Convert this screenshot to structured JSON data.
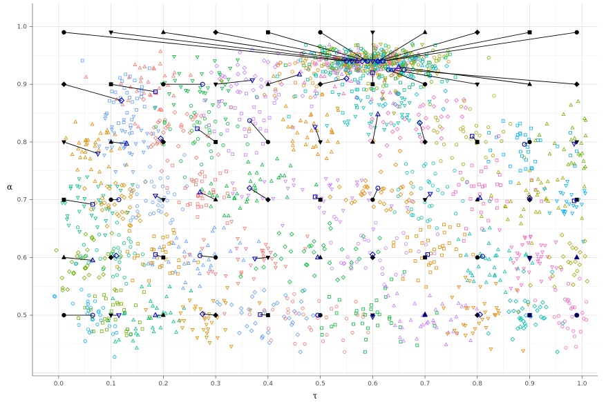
{
  "chart_data": {
    "type": "scatter",
    "title": "",
    "xlabel": "τ",
    "ylabel": "α",
    "xlim": [
      -0.05,
      1.03
    ],
    "ylim": [
      0.395,
      1.04
    ],
    "xticks": [
      "0.0",
      "0.1",
      "0.2",
      "0.3",
      "0.4",
      "0.5",
      "0.6",
      "0.7",
      "0.8",
      "0.9",
      "1.0"
    ],
    "yticks": [
      "0.5",
      "0.6",
      "0.7",
      "0.8",
      "0.9",
      "1.0"
    ],
    "grid": true,
    "legend": "none",
    "palette": [
      "#F8766D",
      "#00BA38",
      "#C77CFF",
      "#E58700",
      "#00C0AF",
      "#FF61C3",
      "#A3A500",
      "#00B0F6",
      "#6BB100",
      "#00BF7D",
      "#DE8C00",
      "#619CFF"
    ],
    "marker_shapes": [
      "circle",
      "square",
      "triangle-up",
      "triangle-down",
      "diamond"
    ],
    "true_color": "#000000",
    "estimate_color": "#0000CD",
    "pairs": [
      {
        "tau": 0.01,
        "alpha": 0.99,
        "shape": "circle",
        "est_tau": 0.55,
        "est_alpha": 0.94
      },
      {
        "tau": 0.1,
        "alpha": 0.99,
        "shape": "triangle-down",
        "est_tau": 0.56,
        "est_alpha": 0.94
      },
      {
        "tau": 0.2,
        "alpha": 0.99,
        "shape": "triangle-up",
        "est_tau": 0.57,
        "est_alpha": 0.94
      },
      {
        "tau": 0.3,
        "alpha": 0.99,
        "shape": "diamond",
        "est_tau": 0.58,
        "est_alpha": 0.94
      },
      {
        "tau": 0.4,
        "alpha": 0.99,
        "shape": "square",
        "est_tau": 0.59,
        "est_alpha": 0.94
      },
      {
        "tau": 0.5,
        "alpha": 0.99,
        "shape": "circle",
        "est_tau": 0.59,
        "est_alpha": 0.94
      },
      {
        "tau": 0.6,
        "alpha": 0.99,
        "shape": "triangle-down",
        "est_tau": 0.6,
        "est_alpha": 0.94
      },
      {
        "tau": 0.7,
        "alpha": 0.99,
        "shape": "triangle-up",
        "est_tau": 0.61,
        "est_alpha": 0.94
      },
      {
        "tau": 0.8,
        "alpha": 0.99,
        "shape": "diamond",
        "est_tau": 0.61,
        "est_alpha": 0.94
      },
      {
        "tau": 0.9,
        "alpha": 0.99,
        "shape": "square",
        "est_tau": 0.62,
        "est_alpha": 0.94
      },
      {
        "tau": 0.99,
        "alpha": 0.99,
        "shape": "circle",
        "est_tau": 0.62,
        "est_alpha": 0.94
      },
      {
        "tau": 0.01,
        "alpha": 0.9,
        "shape": "diamond",
        "est_tau": 0.12,
        "est_alpha": 0.872
      },
      {
        "tau": 0.1,
        "alpha": 0.9,
        "shape": "square",
        "est_tau": 0.185,
        "est_alpha": 0.887
      },
      {
        "tau": 0.2,
        "alpha": 0.9,
        "shape": "circle",
        "est_tau": 0.275,
        "est_alpha": 0.9
      },
      {
        "tau": 0.3,
        "alpha": 0.9,
        "shape": "triangle-down",
        "est_tau": 0.37,
        "est_alpha": 0.907
      },
      {
        "tau": 0.4,
        "alpha": 0.9,
        "shape": "triangle-up",
        "est_tau": 0.46,
        "est_alpha": 0.917
      },
      {
        "tau": 0.5,
        "alpha": 0.9,
        "shape": "diamond",
        "est_tau": 0.55,
        "est_alpha": 0.91
      },
      {
        "tau": 0.6,
        "alpha": 0.9,
        "shape": "square",
        "est_tau": 0.6,
        "est_alpha": 0.92
      },
      {
        "tau": 0.7,
        "alpha": 0.9,
        "shape": "circle",
        "est_tau": 0.63,
        "est_alpha": 0.925
      },
      {
        "tau": 0.8,
        "alpha": 0.9,
        "shape": "triangle-down",
        "est_tau": 0.64,
        "est_alpha": 0.925
      },
      {
        "tau": 0.9,
        "alpha": 0.9,
        "shape": "triangle-up",
        "est_tau": 0.65,
        "est_alpha": 0.93
      },
      {
        "tau": 0.99,
        "alpha": 0.9,
        "shape": "diamond",
        "est_tau": 0.66,
        "est_alpha": 0.925
      },
      {
        "tau": 0.01,
        "alpha": 0.8,
        "shape": "triangle-down",
        "est_tau": 0.075,
        "est_alpha": 0.78
      },
      {
        "tau": 0.1,
        "alpha": 0.8,
        "shape": "triangle-up",
        "est_tau": 0.13,
        "est_alpha": 0.797
      },
      {
        "tau": 0.2,
        "alpha": 0.8,
        "shape": "diamond",
        "est_tau": 0.195,
        "est_alpha": 0.806
      },
      {
        "tau": 0.3,
        "alpha": 0.8,
        "shape": "square",
        "est_tau": 0.265,
        "est_alpha": 0.823
      },
      {
        "tau": 0.4,
        "alpha": 0.8,
        "shape": "circle",
        "est_tau": 0.365,
        "est_alpha": 0.837
      },
      {
        "tau": 0.5,
        "alpha": 0.8,
        "shape": "triangle-down",
        "est_tau": 0.49,
        "est_alpha": 0.826
      },
      {
        "tau": 0.6,
        "alpha": 0.8,
        "shape": "triangle-up",
        "est_tau": 0.61,
        "est_alpha": 0.848
      },
      {
        "tau": 0.7,
        "alpha": 0.8,
        "shape": "diamond",
        "est_tau": 0.69,
        "est_alpha": 0.833
      },
      {
        "tau": 0.8,
        "alpha": 0.8,
        "shape": "square",
        "est_tau": 0.79,
        "est_alpha": 0.81
      },
      {
        "tau": 0.9,
        "alpha": 0.8,
        "shape": "circle",
        "est_tau": 0.89,
        "est_alpha": 0.796
      },
      {
        "tau": 0.99,
        "alpha": 0.8,
        "shape": "triangle-down",
        "est_tau": 0.985,
        "est_alpha": 0.797
      },
      {
        "tau": 0.01,
        "alpha": 0.7,
        "shape": "square",
        "est_tau": 0.065,
        "est_alpha": 0.692
      },
      {
        "tau": 0.1,
        "alpha": 0.7,
        "shape": "circle",
        "est_tau": 0.115,
        "est_alpha": 0.7
      },
      {
        "tau": 0.2,
        "alpha": 0.7,
        "shape": "triangle-down",
        "est_tau": 0.185,
        "est_alpha": 0.707
      },
      {
        "tau": 0.3,
        "alpha": 0.7,
        "shape": "triangle-up",
        "est_tau": 0.27,
        "est_alpha": 0.713
      },
      {
        "tau": 0.4,
        "alpha": 0.7,
        "shape": "diamond",
        "est_tau": 0.365,
        "est_alpha": 0.72
      },
      {
        "tau": 0.5,
        "alpha": 0.7,
        "shape": "square",
        "est_tau": 0.49,
        "est_alpha": 0.705
      },
      {
        "tau": 0.6,
        "alpha": 0.7,
        "shape": "circle",
        "est_tau": 0.61,
        "est_alpha": 0.72
      },
      {
        "tau": 0.7,
        "alpha": 0.7,
        "shape": "triangle-down",
        "est_tau": 0.71,
        "est_alpha": 0.71
      },
      {
        "tau": 0.8,
        "alpha": 0.7,
        "shape": "triangle-up",
        "est_tau": 0.805,
        "est_alpha": 0.703
      },
      {
        "tau": 0.9,
        "alpha": 0.7,
        "shape": "diamond",
        "est_tau": 0.9,
        "est_alpha": 0.703
      },
      {
        "tau": 0.99,
        "alpha": 0.7,
        "shape": "square",
        "est_tau": 0.985,
        "est_alpha": 0.698
      },
      {
        "tau": 0.01,
        "alpha": 0.6,
        "shape": "triangle-up",
        "est_tau": 0.065,
        "est_alpha": 0.595
      },
      {
        "tau": 0.1,
        "alpha": 0.6,
        "shape": "diamond",
        "est_tau": 0.11,
        "est_alpha": 0.603
      },
      {
        "tau": 0.2,
        "alpha": 0.6,
        "shape": "square",
        "est_tau": 0.185,
        "est_alpha": 0.605
      },
      {
        "tau": 0.3,
        "alpha": 0.6,
        "shape": "circle",
        "est_tau": 0.27,
        "est_alpha": 0.603
      },
      {
        "tau": 0.4,
        "alpha": 0.6,
        "shape": "triangle-down",
        "est_tau": 0.375,
        "est_alpha": 0.598
      },
      {
        "tau": 0.5,
        "alpha": 0.6,
        "shape": "triangle-up",
        "est_tau": 0.495,
        "est_alpha": 0.6
      },
      {
        "tau": 0.6,
        "alpha": 0.6,
        "shape": "diamond",
        "est_tau": 0.6,
        "est_alpha": 0.605
      },
      {
        "tau": 0.7,
        "alpha": 0.6,
        "shape": "square",
        "est_tau": 0.705,
        "est_alpha": 0.605
      },
      {
        "tau": 0.8,
        "alpha": 0.6,
        "shape": "circle",
        "est_tau": 0.81,
        "est_alpha": 0.602
      },
      {
        "tau": 0.9,
        "alpha": 0.6,
        "shape": "triangle-down",
        "est_tau": 0.9,
        "est_alpha": 0.598
      },
      {
        "tau": 0.99,
        "alpha": 0.6,
        "shape": "triangle-up",
        "est_tau": 0.99,
        "est_alpha": 0.6
      },
      {
        "tau": 0.01,
        "alpha": 0.5,
        "shape": "circle",
        "est_tau": 0.065,
        "est_alpha": 0.5
      },
      {
        "tau": 0.1,
        "alpha": 0.5,
        "shape": "triangle-down",
        "est_tau": 0.115,
        "est_alpha": 0.5
      },
      {
        "tau": 0.2,
        "alpha": 0.5,
        "shape": "triangle-up",
        "est_tau": 0.185,
        "est_alpha": 0.5
      },
      {
        "tau": 0.3,
        "alpha": 0.5,
        "shape": "diamond",
        "est_tau": 0.275,
        "est_alpha": 0.502
      },
      {
        "tau": 0.4,
        "alpha": 0.5,
        "shape": "square",
        "est_tau": 0.385,
        "est_alpha": 0.501
      },
      {
        "tau": 0.5,
        "alpha": 0.5,
        "shape": "circle",
        "est_tau": 0.495,
        "est_alpha": 0.5
      },
      {
        "tau": 0.6,
        "alpha": 0.5,
        "shape": "triangle-down",
        "est_tau": 0.6,
        "est_alpha": 0.497
      },
      {
        "tau": 0.7,
        "alpha": 0.5,
        "shape": "triangle-up",
        "est_tau": 0.7,
        "est_alpha": 0.501
      },
      {
        "tau": 0.8,
        "alpha": 0.5,
        "shape": "diamond",
        "est_tau": 0.805,
        "est_alpha": 0.501
      },
      {
        "tau": 0.9,
        "alpha": 0.5,
        "shape": "square",
        "est_tau": 0.9,
        "est_alpha": 0.5
      },
      {
        "tau": 0.99,
        "alpha": 0.5,
        "shape": "circle",
        "est_tau": 0.99,
        "est_alpha": 0.5
      }
    ]
  }
}
